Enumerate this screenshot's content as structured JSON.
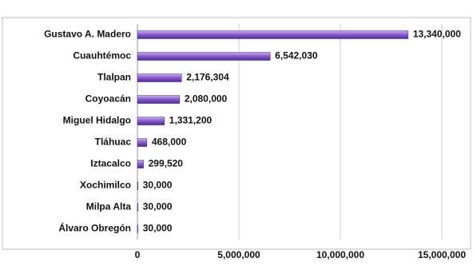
{
  "chart_data": {
    "type": "bar",
    "orientation": "horizontal",
    "categories": [
      "Gustavo A. Madero",
      "Cuauhtémoc",
      "Tlalpan",
      "Coyoacán",
      "Miguel Hidalgo",
      "Tláhuac",
      "Iztacalco",
      "Xochimilco",
      "Milpa Alta",
      "Álvaro Obregón"
    ],
    "values": [
      13340000,
      6542030,
      2176304,
      2080000,
      1331200,
      468000,
      299520,
      30000,
      30000,
      30000
    ],
    "value_labels": [
      "13,340,000",
      "6,542,030",
      "2,176,304",
      "2,080,000",
      "1,331,200",
      "468,000",
      "299,520",
      "30,000",
      "30,000",
      "30,000"
    ],
    "color": "#7b4fc4",
    "xlim": [
      0,
      15000000
    ],
    "xticks": [
      0,
      {
        "value": 5000000,
        "label": "5,000,000"
      },
      {
        "value": 10000000,
        "label": "10,000,000"
      },
      {
        "value": 15000000,
        "label": "15,000,000"
      }
    ],
    "grid": true
  }
}
